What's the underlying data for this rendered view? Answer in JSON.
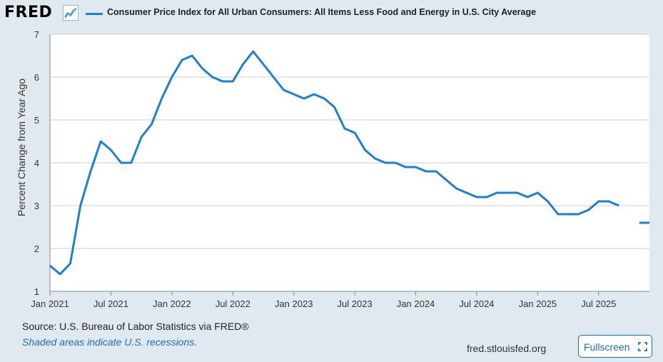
{
  "header": {
    "logo_text": "FRED",
    "logo_icon": "chart-line-icon",
    "legend_label": "Consumer Price Index for All Urban Consumers: All Items Less Food and Energy in U.S. City Average"
  },
  "footer": {
    "source": "Source: U.S. Bureau of Labor Statistics via FRED®",
    "recessions": "Shaded areas indicate U.S. recessions.",
    "site": "fred.stlouisfed.org",
    "fullscreen_label": "Fullscreen",
    "fullscreen_icon": "fullscreen-icon"
  },
  "colors": {
    "series": "#1b7fd6",
    "background": "#e1e9f0",
    "plot": "#ffffff",
    "grid": "#c9cfd6"
  },
  "chart_data": {
    "type": "line",
    "title": "",
    "xlabel": "",
    "ylabel": "Percent Change from Year Ago",
    "ylim": [
      1,
      7
    ],
    "yticks": [
      1,
      2,
      3,
      4,
      5,
      6,
      7
    ],
    "xticks": [
      {
        "label": "Jan 2021",
        "date": "2021-01"
      },
      {
        "label": "Jul 2021",
        "date": "2021-07"
      },
      {
        "label": "Jan 2022",
        "date": "2022-01"
      },
      {
        "label": "Jul 2022",
        "date": "2022-07"
      },
      {
        "label": "Jan 2023",
        "date": "2023-01"
      },
      {
        "label": "Jul 2023",
        "date": "2023-07"
      },
      {
        "label": "Jan 2024",
        "date": "2024-01"
      },
      {
        "label": "Jul 2024",
        "date": "2024-07"
      },
      {
        "label": "Jan 2025",
        "date": "2025-01"
      },
      {
        "label": "Jul 2025",
        "date": "2025-07"
      }
    ],
    "grid": true,
    "legend": "top",
    "series": [
      {
        "name": "Consumer Price Index for All Urban Consumers: All Items Less Food and Energy in U.S. City Average",
        "color": "#1b7fd6",
        "points": [
          [
            "2021-01",
            1.6
          ],
          [
            "2021-02",
            1.4
          ],
          [
            "2021-03",
            1.65
          ],
          [
            "2021-04",
            3.0
          ],
          [
            "2021-05",
            3.8
          ],
          [
            "2021-06",
            4.5
          ],
          [
            "2021-07",
            4.3
          ],
          [
            "2021-08",
            4.0
          ],
          [
            "2021-09",
            4.0
          ],
          [
            "2021-10",
            4.6
          ],
          [
            "2021-11",
            4.9
          ],
          [
            "2021-12",
            5.5
          ],
          [
            "2022-01",
            6.0
          ],
          [
            "2022-02",
            6.4
          ],
          [
            "2022-03",
            6.5
          ],
          [
            "2022-04",
            6.2
          ],
          [
            "2022-05",
            6.0
          ],
          [
            "2022-06",
            5.9
          ],
          [
            "2022-07",
            5.9
          ],
          [
            "2022-08",
            6.3
          ],
          [
            "2022-09",
            6.6
          ],
          [
            "2022-10",
            6.3
          ],
          [
            "2022-11",
            6.0
          ],
          [
            "2022-12",
            5.7
          ],
          [
            "2023-01",
            5.6
          ],
          [
            "2023-02",
            5.5
          ],
          [
            "2023-03",
            5.6
          ],
          [
            "2023-04",
            5.5
          ],
          [
            "2023-05",
            5.3
          ],
          [
            "2023-06",
            4.8
          ],
          [
            "2023-07",
            4.7
          ],
          [
            "2023-08",
            4.3
          ],
          [
            "2023-09",
            4.1
          ],
          [
            "2023-10",
            4.0
          ],
          [
            "2023-11",
            4.0
          ],
          [
            "2023-12",
            3.9
          ],
          [
            "2024-01",
            3.9
          ],
          [
            "2024-02",
            3.8
          ],
          [
            "2024-03",
            3.8
          ],
          [
            "2024-04",
            3.6
          ],
          [
            "2024-05",
            3.4
          ],
          [
            "2024-06",
            3.3
          ],
          [
            "2024-07",
            3.2
          ],
          [
            "2024-08",
            3.2
          ],
          [
            "2024-09",
            3.3
          ],
          [
            "2024-10",
            3.3
          ],
          [
            "2024-11",
            3.3
          ],
          [
            "2024-12",
            3.2
          ],
          [
            "2025-01",
            3.3
          ],
          [
            "2025-02",
            3.1
          ],
          [
            "2025-03",
            2.8
          ],
          [
            "2025-04",
            2.8
          ],
          [
            "2025-05",
            2.8
          ],
          [
            "2025-06",
            2.9
          ],
          [
            "2025-07",
            3.1
          ],
          [
            "2025-08",
            3.1
          ],
          [
            "2025-09",
            3.0
          ],
          [
            "2025-10",
            null
          ],
          [
            "2025-11",
            2.6
          ],
          [
            "2025-12",
            2.6
          ]
        ]
      }
    ]
  }
}
